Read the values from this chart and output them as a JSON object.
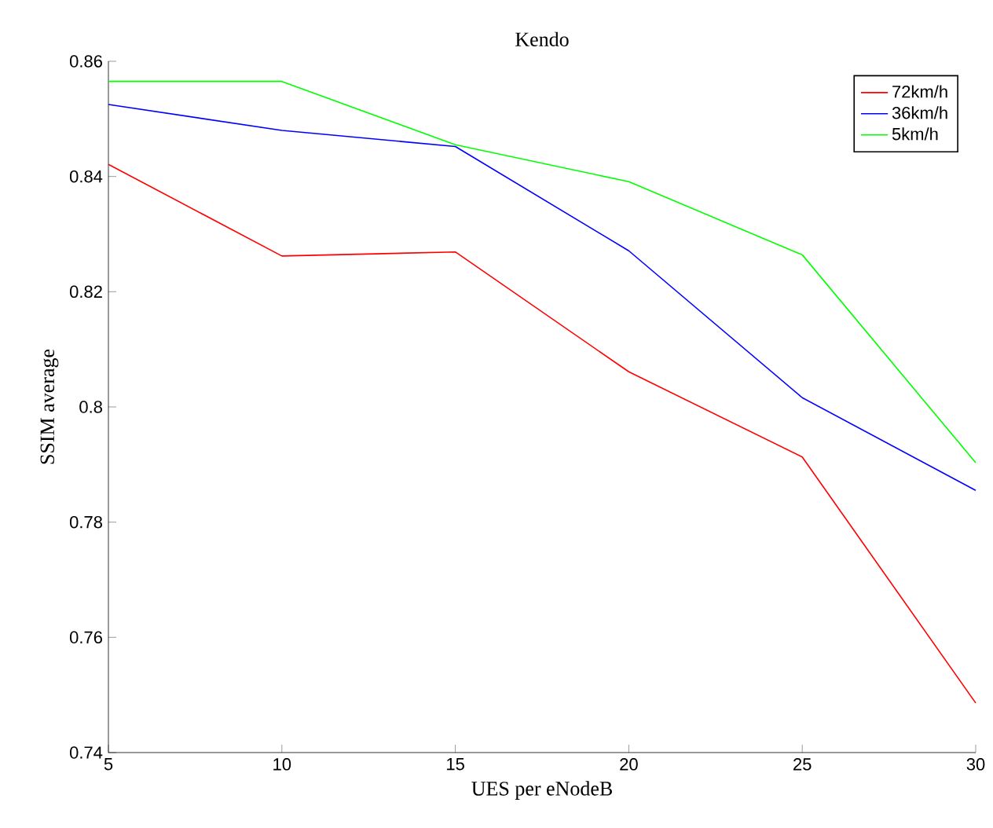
{
  "chart_data": {
    "type": "line",
    "title": "Kendo",
    "xlabel": "UES per eNodeB",
    "ylabel": "SSIM average",
    "x": [
      5,
      10,
      15,
      20,
      25,
      30
    ],
    "series": [
      {
        "name": "72km/h",
        "color": "#ff0000",
        "values": [
          0.8421,
          0.8262,
          0.8269,
          0.8061,
          0.7913,
          0.7486
        ]
      },
      {
        "name": "36km/h",
        "color": "#0000ff",
        "values": [
          0.8525,
          0.848,
          0.8452,
          0.8271,
          0.8016,
          0.7855
        ]
      },
      {
        "name": "5km/h",
        "color": "#00ff00",
        "values": [
          0.8565,
          0.8565,
          0.8455,
          0.8391,
          0.8264,
          0.7903
        ]
      }
    ],
    "xlim": [
      5,
      30
    ],
    "ylim": [
      0.74,
      0.86
    ],
    "xticks": [
      5,
      10,
      15,
      20,
      25,
      30
    ],
    "yticks": [
      0.74,
      0.76,
      0.78,
      0.8,
      0.82,
      0.84,
      0.86
    ],
    "grid": false,
    "legend": "top right",
    "marker": "none",
    "line_style": "solid"
  }
}
